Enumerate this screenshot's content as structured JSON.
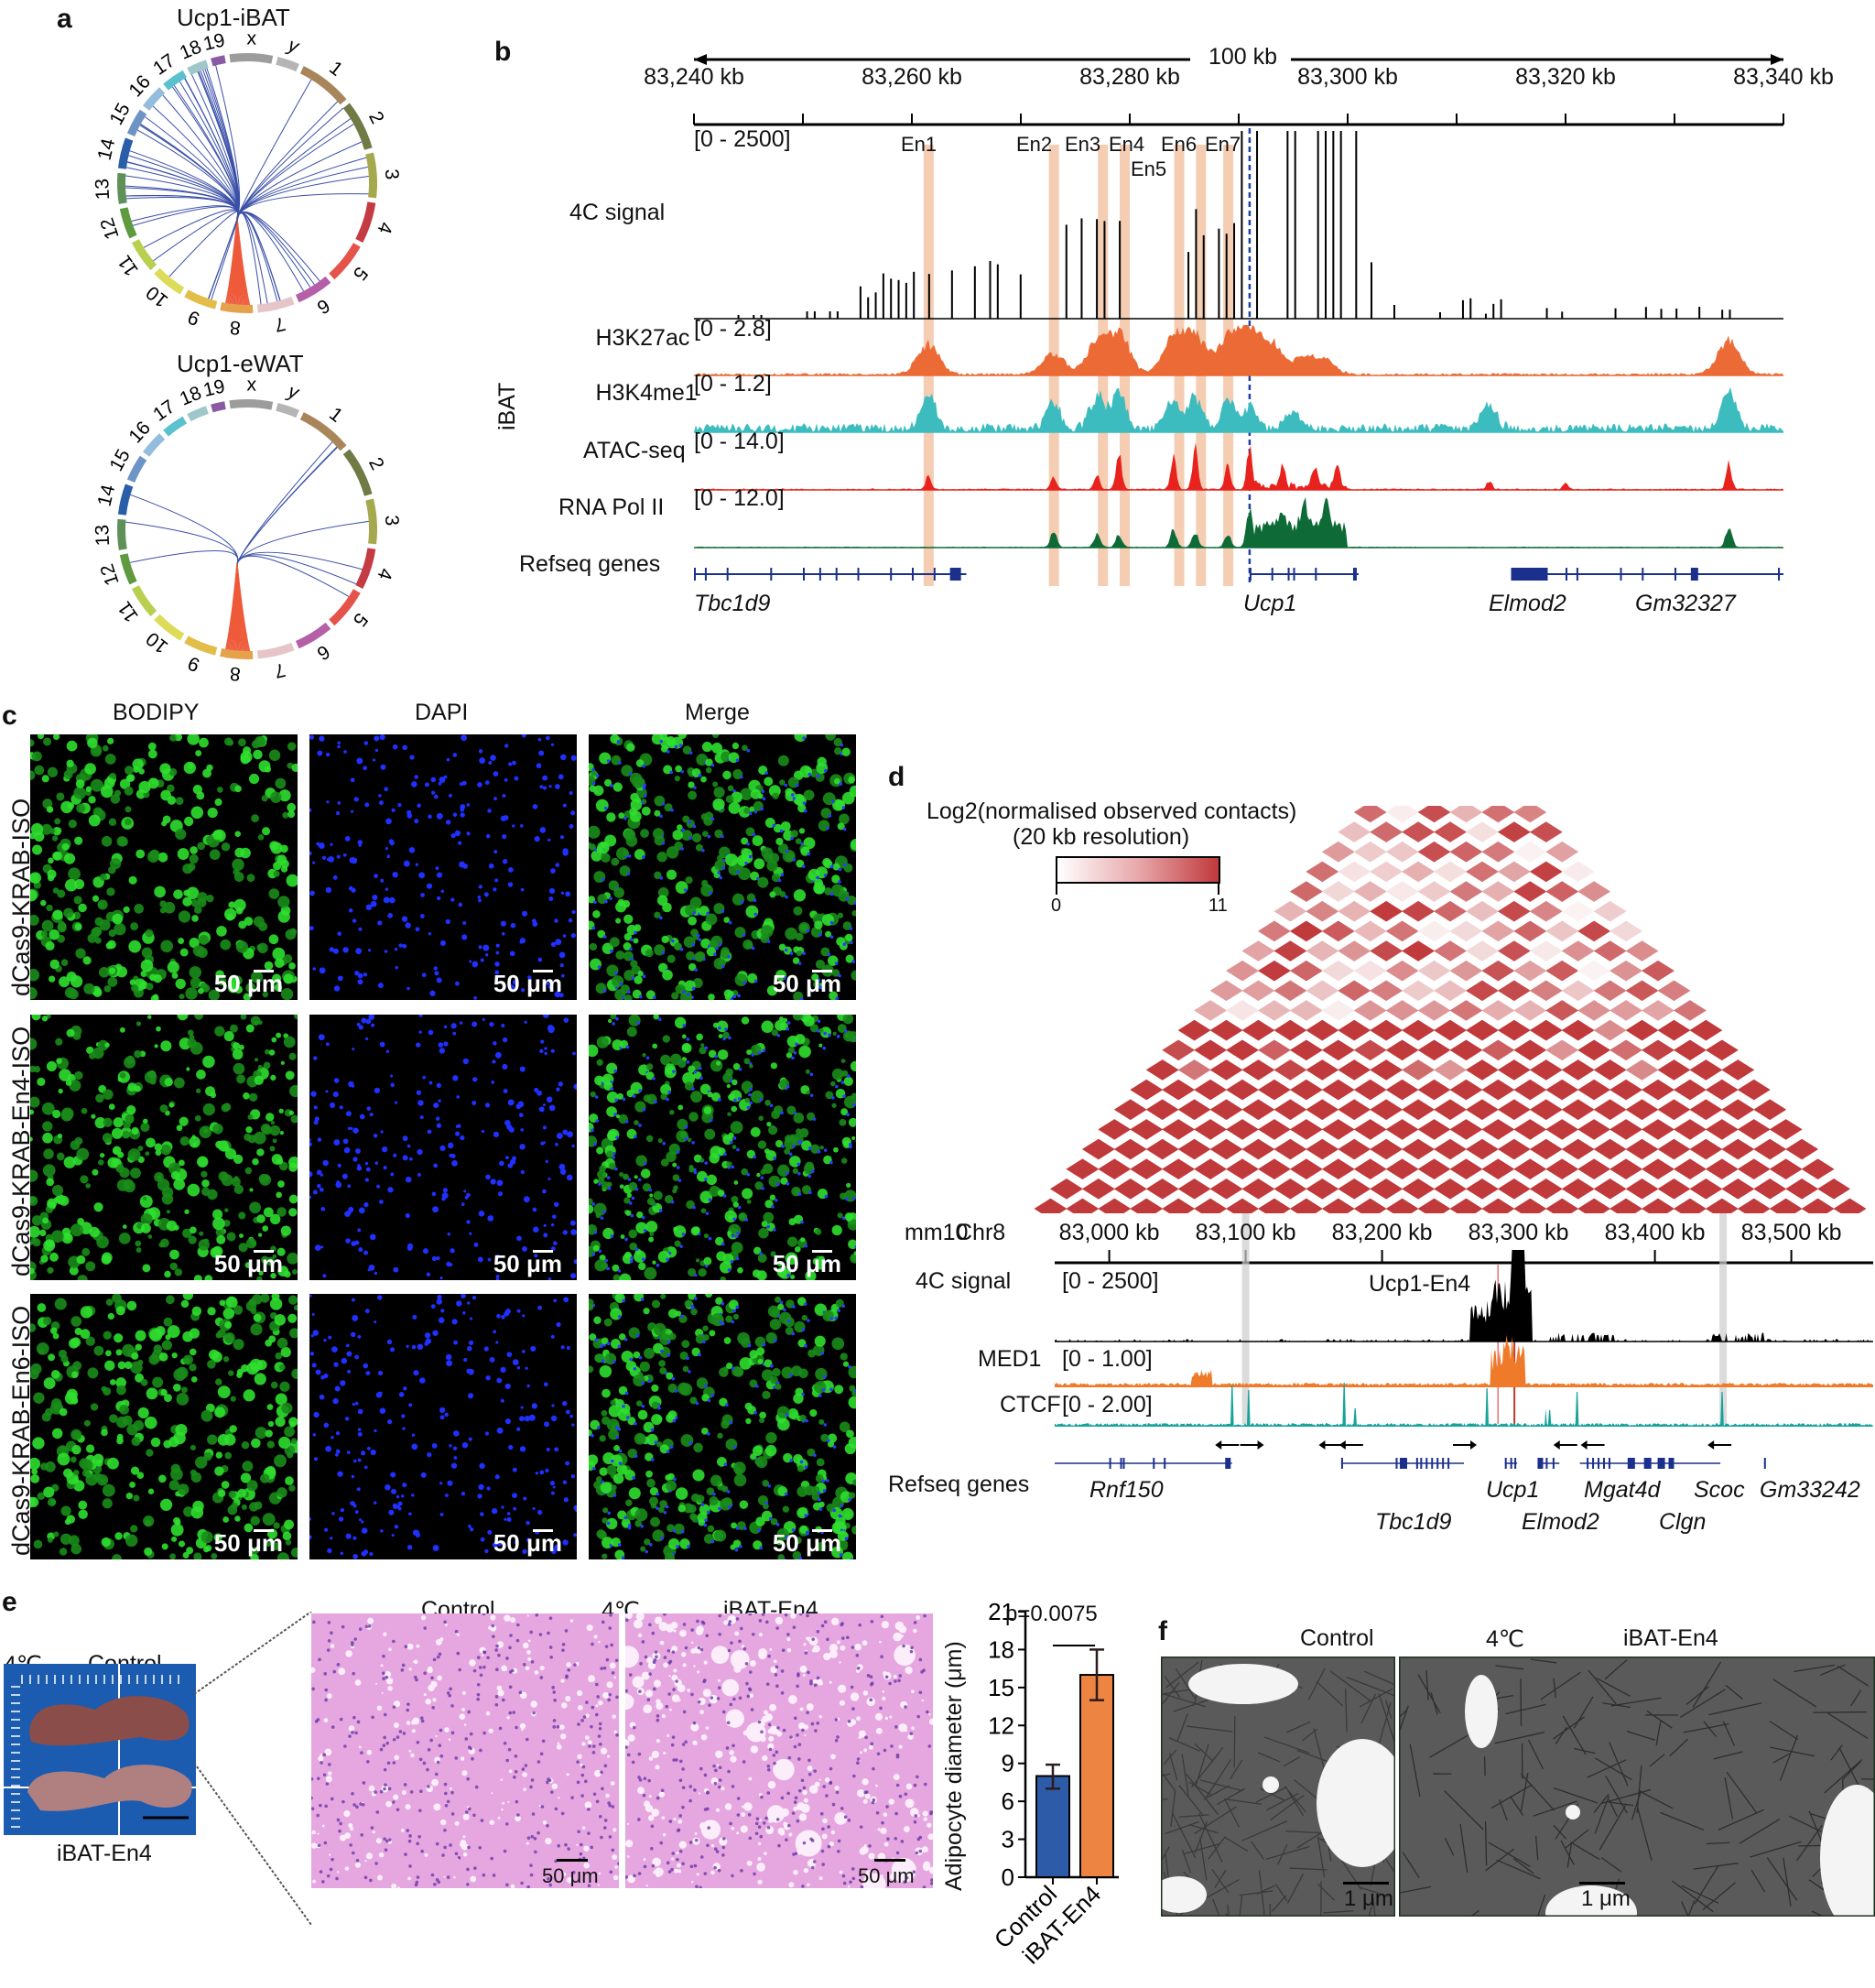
{
  "panels": {
    "a": {
      "label": "a",
      "plots": [
        {
          "title": "Ucp1-iBAT",
          "trans_links": 58,
          "cis_links": 22
        },
        {
          "title": "Ucp1-eWAT",
          "trans_links": 10,
          "cis_links": 22
        }
      ],
      "chromosomes": [
        "1",
        "2",
        "3",
        "4",
        "5",
        "6",
        "7",
        "8",
        "9",
        "10",
        "11",
        "12",
        "13",
        "14",
        "15",
        "16",
        "17",
        "18",
        "19",
        "x",
        "y"
      ],
      "colors": {
        "trans": "#3a4fa8",
        "cis": "#ee5a3a"
      }
    },
    "b": {
      "label": "b",
      "scale_label": "100 kb",
      "ticks": [
        "83,240 kb",
        "83,260 kb",
        "83,280 kb",
        "83,300 kb",
        "83,320 kb",
        "83,340 kb"
      ],
      "enhancers": [
        "En1",
        "En2",
        "En3",
        "En4",
        "En5",
        "En6",
        "En7"
      ],
      "group_label": "iBAT",
      "tracks": [
        {
          "name": "4C signal",
          "range": "[0 - 2500]",
          "color": "#000000"
        },
        {
          "name": "H3K27ac",
          "range": "[0 - 2.8]",
          "color": "#ec6a35"
        },
        {
          "name": "H3K4me1",
          "range": "[0 - 1.2]",
          "color": "#3cbcbf"
        },
        {
          "name": "ATAC-seq",
          "range": "[0 - 14.0]",
          "color": "#e8231d"
        },
        {
          "name": "RNA Pol II",
          "range": "[0 - 12.0]",
          "color": "#0e6b37"
        }
      ],
      "genes_label": "Refseq genes",
      "genes": [
        "Tbc1d9",
        "Ucp1",
        "Elmod2",
        "Gm32327"
      ],
      "highlight_color": "#f2c4a4"
    },
    "c": {
      "label": "c",
      "columns": [
        "BODIPY",
        "DAPI",
        "Merge"
      ],
      "rows": [
        "dCas9-KRAB-ISO",
        "dCas9-KRAB-En4-ISO",
        "dCas9-KRAB-En6-ISO"
      ],
      "scale_bar": "50 μm"
    },
    "d": {
      "label": "d",
      "colorbar_title": "Log2(normalised observed contacts)",
      "colorbar_subtitle": "(20 kb resolution)",
      "colorbar_min": "0",
      "colorbar_max": "11",
      "genome": "mm10",
      "chrom": "Chr8",
      "ticks": [
        "83,000 kb",
        "83,100 kb",
        "83,200 kb",
        "83,300 kb",
        "83,400 kb",
        "83,500 kb"
      ],
      "viewpoint": "Ucp1-En4",
      "tracks": [
        {
          "name": "4C signal",
          "range": "[0 - 2500]",
          "color": "#000000"
        },
        {
          "name": "MED1",
          "range": "[0 - 1.00]",
          "color": "#ee7a2a"
        },
        {
          "name": "CTCF",
          "range": "[0 - 2.00]",
          "color": "#17a39a"
        }
      ],
      "genes_label": "Refseq genes",
      "genes_row1": [
        "Rnf150",
        "Ucp1",
        "Mgat4d",
        "Scoc",
        "Gm33242"
      ],
      "genes_row2": [
        "Tbc1d9",
        "Elmod2",
        "Clgn"
      ],
      "heat_color": "#c0393b"
    },
    "e": {
      "label": "e",
      "temp": "4℃",
      "photo_top": "Control",
      "photo_bottom": "iBAT-En4",
      "he_titles": [
        "Control",
        "4℃",
        "iBAT-En4"
      ],
      "scale_bar": "50 μm"
    },
    "f": {
      "label": "f",
      "titles": [
        "Control",
        "4℃",
        "iBAT-En4"
      ],
      "scale_bar": "1 μm"
    }
  },
  "chart_data": {
    "type": "bar",
    "title": "",
    "categories": [
      "Control",
      "iBAT-En4"
    ],
    "values": [
      8.0,
      16.0
    ],
    "error_low": [
      7.0,
      14.0
    ],
    "error_high": [
      8.9,
      18.0
    ],
    "colors": [
      "#2d5ba8",
      "#ed8442"
    ],
    "xlabel": "",
    "ylabel": "Adipocyte diameter (μm)",
    "ylim": [
      0,
      21
    ],
    "yticks": [
      "0",
      "3",
      "6",
      "9",
      "12",
      "15",
      "18",
      "21"
    ],
    "annotation": "p=0.0075",
    "grid": false
  }
}
